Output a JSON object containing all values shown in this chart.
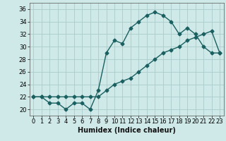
{
  "xlabel": "Humidex (Indice chaleur)",
  "bg_color": "#cfe8e8",
  "grid_color": "#aacccc",
  "line_color": "#1a6060",
  "xlim": [
    -0.5,
    23.5
  ],
  "ylim": [
    19.0,
    37.0
  ],
  "yticks": [
    20,
    22,
    24,
    26,
    28,
    30,
    32,
    34,
    36
  ],
  "xticks": [
    0,
    1,
    2,
    3,
    4,
    5,
    6,
    7,
    8,
    9,
    10,
    11,
    12,
    13,
    14,
    15,
    16,
    17,
    18,
    19,
    20,
    21,
    22,
    23
  ],
  "series1_x": [
    0,
    1,
    2,
    3,
    4,
    5,
    6,
    7,
    8,
    9,
    10,
    11,
    12,
    13,
    14,
    15,
    16,
    17,
    18,
    19,
    20,
    21,
    22,
    23
  ],
  "series1_y": [
    22,
    22,
    21,
    21,
    20,
    21,
    21,
    20,
    23,
    29,
    31,
    30.5,
    33,
    34,
    35,
    35.5,
    35,
    34,
    32,
    33,
    32,
    30,
    29,
    29
  ],
  "series2_x": [
    0,
    1,
    2,
    3,
    4,
    5,
    6,
    7,
    8,
    9,
    10,
    11,
    12,
    13,
    14,
    15,
    16,
    17,
    18,
    19,
    20,
    21,
    22,
    23
  ],
  "series2_y": [
    22,
    22,
    22,
    22,
    22,
    22,
    22,
    22,
    22,
    23,
    24,
    24.5,
    25,
    26,
    27,
    28,
    29,
    29.5,
    30,
    31,
    31.5,
    32,
    32.5,
    29
  ],
  "marker": "D",
  "marker_size": 2.5,
  "linewidth": 1.0,
  "xlabel_fontsize": 7,
  "tick_fontsize": 6
}
